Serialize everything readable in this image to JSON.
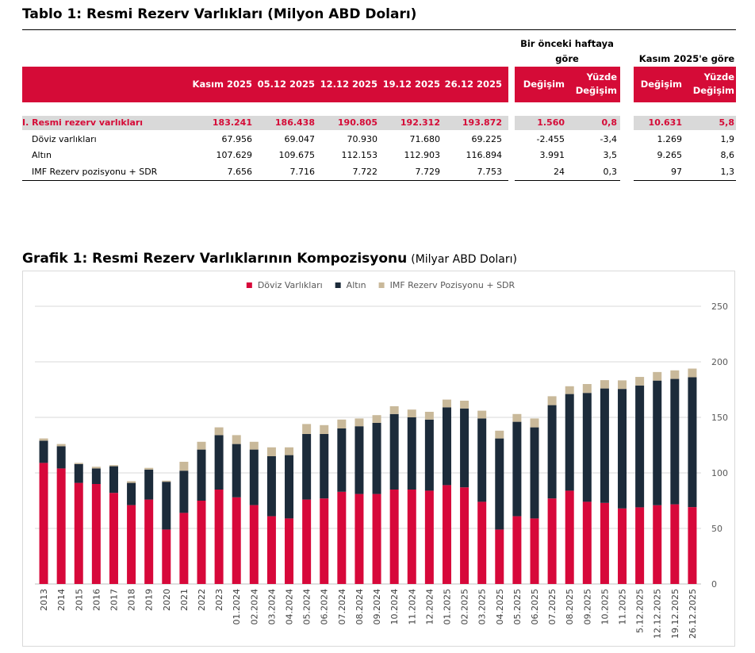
{
  "table": {
    "title": "Tablo 1: Resmi Rezerv Varlıkları (Milyon ABD Doları)",
    "group_headers": [
      "Bir önceki haftaya göre",
      "Kasım 2025'e göre"
    ],
    "columns": [
      "Kasım 2025",
      "05.12 2025",
      "12.12 2025",
      "19.12 2025",
      "26.12 2025",
      "Değişim",
      "Yüzde Değişim",
      "Değişim",
      "Yüzde Değişim"
    ],
    "rows": [
      {
        "label": "I. Resmi rezerv varlıkları",
        "cells": [
          "183.241",
          "186.438",
          "190.805",
          "192.312",
          "193.872",
          "1.560",
          "0,8",
          "10.631",
          "5,8"
        ]
      },
      {
        "label": "Döviz varlıkları",
        "cells": [
          "67.956",
          "69.047",
          "70.930",
          "71.680",
          "69.225",
          "-2.455",
          "-3,4",
          "1.269",
          "1,9"
        ]
      },
      {
        "label": "Altın",
        "cells": [
          "107.629",
          "109.675",
          "112.153",
          "112.903",
          "116.894",
          "3.991",
          "3,5",
          "9.265",
          "8,6"
        ]
      },
      {
        "label": "IMF Rezerv pozisyonu + SDR",
        "cells": [
          "7.656",
          "7.716",
          "7.722",
          "7.729",
          "7.753",
          "24",
          "0,3",
          "97",
          "1,3"
        ]
      }
    ]
  },
  "chart_data": {
    "type": "bar",
    "stacked": true,
    "grid": true,
    "title": "Grafik 1: Resmi Rezerv Varlıklarının Kompozisyonu",
    "subtitle": "(Milyar ABD Doları)",
    "categories": [
      "2013",
      "2014",
      "2015",
      "2016",
      "2017",
      "2018",
      "2019",
      "2020",
      "2021",
      "2022",
      "2023",
      "01.2024",
      "02.2024",
      "03.2024",
      "04.2024",
      "05.2024",
      "06.2024",
      "07.2024",
      "08.2024",
      "09.2024",
      "10.2024",
      "11.2024",
      "12.2024",
      "01.2025",
      "02.2025",
      "03.2025",
      "04.2025",
      "05.2025",
      "06.2025",
      "07.2025",
      "08.2025",
      "09.2025",
      "10.2025",
      "11.2025",
      "5.12.2025",
      "12.12.2025",
      "19.12.2025",
      "26.12.2025"
    ],
    "series": [
      {
        "name": "Döviz Varlıkları",
        "color": "#d7083a",
        "values": [
          109,
          104,
          91,
          90,
          82,
          71,
          76,
          49,
          64,
          75,
          85,
          78,
          71,
          61,
          59,
          76,
          77,
          83,
          81,
          81,
          85,
          85,
          84,
          89,
          87,
          74,
          49,
          61,
          59,
          77,
          84,
          74,
          73,
          68.0,
          69.0,
          70.9,
          71.7,
          69.2
        ]
      },
      {
        "name": "Altın",
        "color": "#1c2b3a",
        "values": [
          20,
          20,
          17,
          14,
          24,
          20,
          27,
          43,
          38,
          46,
          49,
          48,
          50,
          54,
          57,
          59,
          58,
          57,
          61,
          64,
          68,
          65,
          64,
          70,
          71,
          75,
          82,
          85,
          82,
          84,
          87,
          98,
          103,
          107.6,
          109.7,
          112.2,
          112.9,
          116.9
        ]
      },
      {
        "name": "IMF Rezerv Pozisyonu + SDR",
        "color": "#c9b99a",
        "values": [
          2,
          2,
          1,
          1.5,
          1,
          1.5,
          1.5,
          1,
          8,
          7,
          7,
          8,
          7,
          8,
          7,
          9,
          8,
          8,
          7,
          7,
          7,
          7,
          7,
          7,
          7,
          7,
          7,
          7,
          8,
          8,
          7,
          8,
          7.5,
          7.7,
          7.7,
          7.7,
          7.7,
          7.8
        ]
      }
    ],
    "ylim": [
      0,
      250
    ],
    "yticks": [
      0,
      50,
      100,
      150,
      200,
      250
    ]
  }
}
